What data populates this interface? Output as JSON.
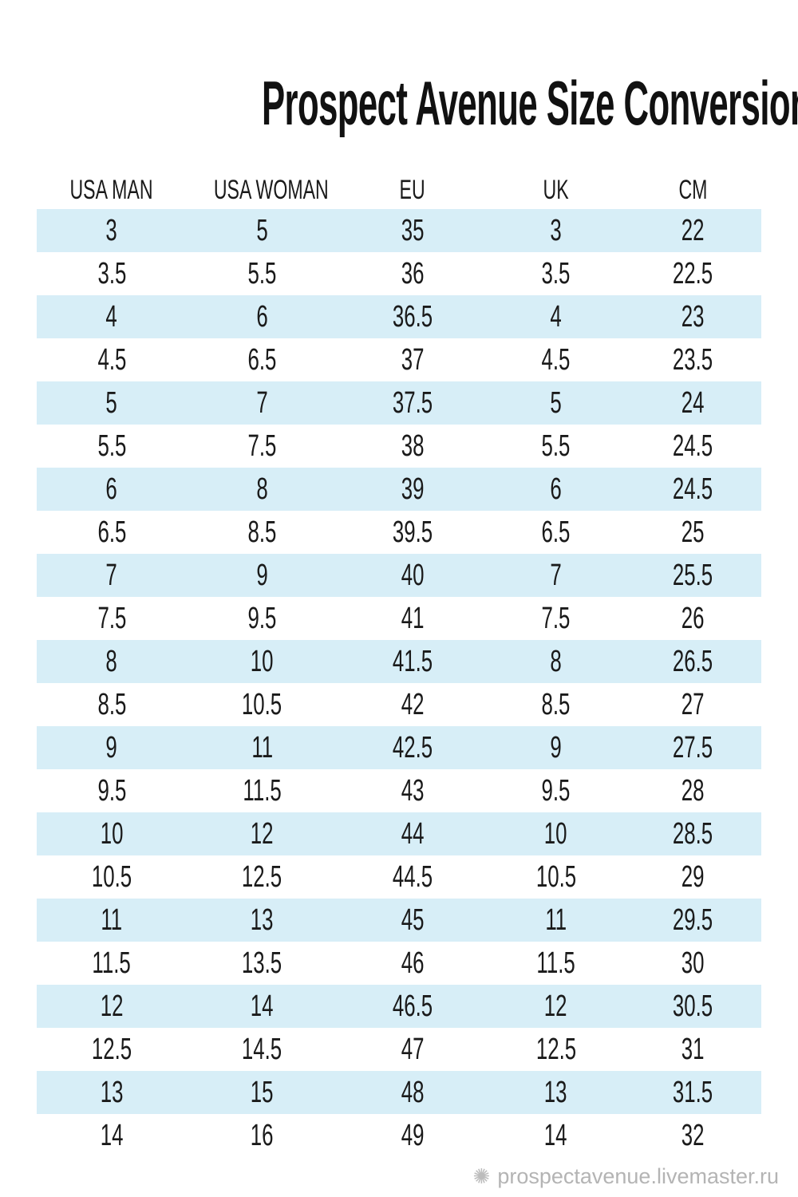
{
  "title": "Prospect Avenue Size Conversions Chart",
  "colors": {
    "background": "#ffffff",
    "row_stripe_blue": "#d7eef7",
    "row_white": "#ffffff",
    "text": "#1a1a1a",
    "title_text": "#111111",
    "watermark_gray": "#b4b4b4"
  },
  "watermark": {
    "icon": "livemaster-logo",
    "text": "prospectavenue.livemaster.ru"
  },
  "chart_data": {
    "type": "table",
    "title": "Prospect Avenue Size Conversions Chart",
    "columns": [
      "USA MAN",
      "USA WOMAN",
      "EU",
      "UK",
      "CM"
    ],
    "rows": [
      [
        "3",
        "5",
        "35",
        "3",
        "22"
      ],
      [
        "3.5",
        "5.5",
        "36",
        "3.5",
        "22.5"
      ],
      [
        "4",
        "6",
        "36.5",
        "4",
        "23"
      ],
      [
        "4.5",
        "6.5",
        "37",
        "4.5",
        "23.5"
      ],
      [
        "5",
        "7",
        "37.5",
        "5",
        "24"
      ],
      [
        "5.5",
        "7.5",
        "38",
        "5.5",
        "24.5"
      ],
      [
        "6",
        "8",
        "39",
        "6",
        "24.5"
      ],
      [
        "6.5",
        "8.5",
        "39.5",
        "6.5",
        "25"
      ],
      [
        "7",
        "9",
        "40",
        "7",
        "25.5"
      ],
      [
        "7.5",
        "9.5",
        "41",
        "7.5",
        "26"
      ],
      [
        "8",
        "10",
        "41.5",
        "8",
        "26.5"
      ],
      [
        "8.5",
        "10.5",
        "42",
        "8.5",
        "27"
      ],
      [
        "9",
        "11",
        "42.5",
        "9",
        "27.5"
      ],
      [
        "9.5",
        "11.5",
        "43",
        "9.5",
        "28"
      ],
      [
        "10",
        "12",
        "44",
        "10",
        "28.5"
      ],
      [
        "10.5",
        "12.5",
        "44.5",
        "10.5",
        "29"
      ],
      [
        "11",
        "13",
        "45",
        "11",
        "29.5"
      ],
      [
        "11.5",
        "13.5",
        "46",
        "11.5",
        "30"
      ],
      [
        "12",
        "14",
        "46.5",
        "12",
        "30.5"
      ],
      [
        "12.5",
        "14.5",
        "47",
        "12.5",
        "31"
      ],
      [
        "13",
        "15",
        "48",
        "13",
        "31.5"
      ],
      [
        "14",
        "16",
        "49",
        "14",
        "32"
      ]
    ],
    "layout": {
      "row_striping": "odd rows light blue, even rows white",
      "alignment": "center"
    }
  }
}
